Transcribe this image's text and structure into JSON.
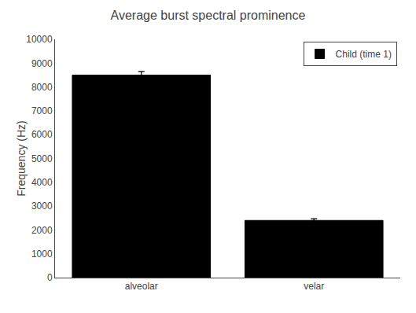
{
  "chart_data": {
    "type": "bar",
    "title": "Average burst spectral prominence",
    "categories": [
      "alveolar",
      "velar"
    ],
    "series": [
      {
        "name": "Child (time 1)",
        "color": "#000000",
        "values": [
          8500,
          2400
        ],
        "errors": [
          150,
          70
        ]
      }
    ],
    "ylabel": "Frequency (Hz)",
    "ylim": [
      0,
      10000
    ],
    "yticks": [
      0,
      1000,
      2000,
      3000,
      4000,
      5000,
      6000,
      7000,
      8000,
      9000,
      10000
    ],
    "grid": false,
    "legend": "upper right"
  }
}
